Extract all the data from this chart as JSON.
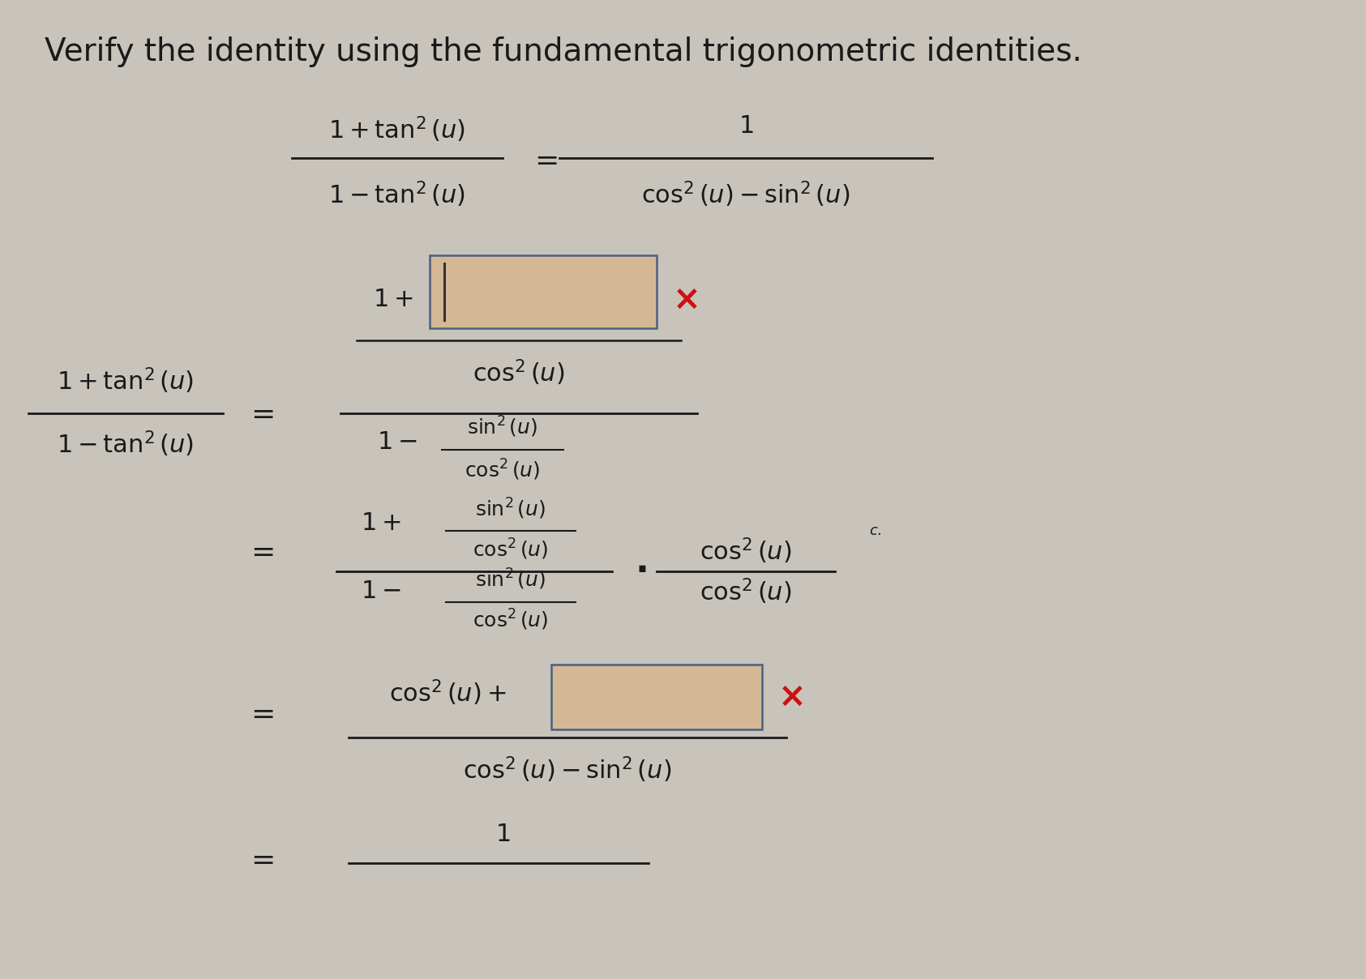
{
  "bg_color": "#c8c4bc",
  "text_color": "#1a1a1a",
  "box_fill": "#d4b896",
  "box_edge": "#4a6080",
  "x_color": "#cc1111",
  "title": "Verify the identity using the fundamental trigonometric identities.",
  "title_fs": 28,
  "main_fs": 22,
  "small_fs": 18,
  "tiny_fs": 13
}
